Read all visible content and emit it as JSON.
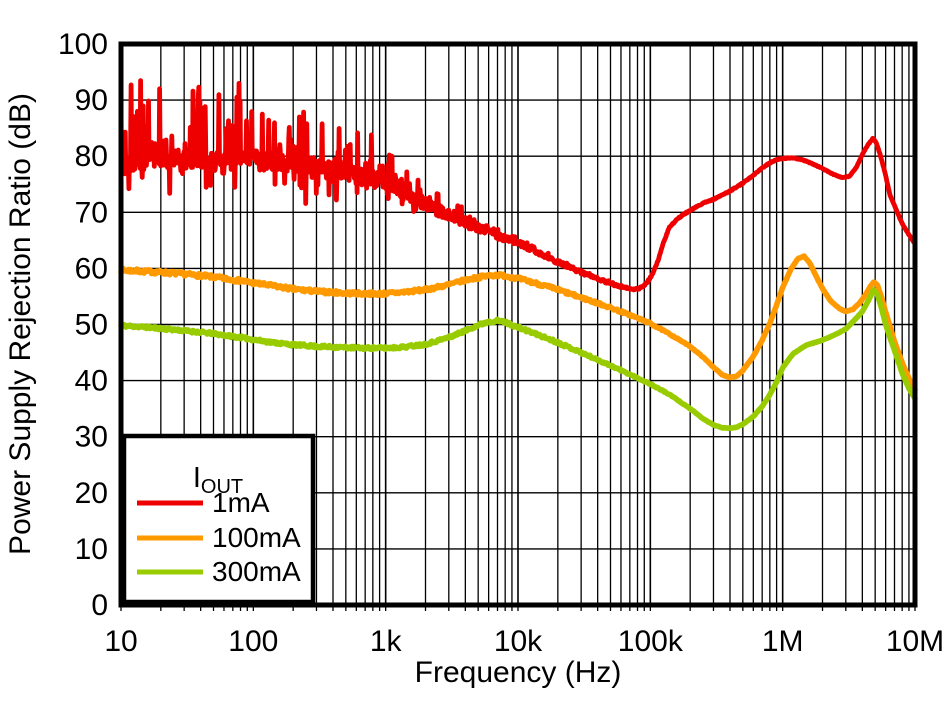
{
  "page": {
    "background": "#ffffff",
    "grid_color": "#000000",
    "axis_color": "#000000"
  },
  "chart_data": {
    "type": "line",
    "title": "",
    "xlabel": "Frequency (Hz)",
    "ylabel": "Power Supply Rejection Ratio (dB)",
    "x_scale": "log",
    "xlim": [
      10,
      10000000
    ],
    "ylim": [
      0,
      100
    ],
    "x_ticks": [
      {
        "v": 10,
        "label": "10"
      },
      {
        "v": 100,
        "label": "100"
      },
      {
        "v": 1000,
        "label": "1k"
      },
      {
        "v": 10000,
        "label": "10k"
      },
      {
        "v": 100000,
        "label": "100k"
      },
      {
        "v": 1000000,
        "label": "1M"
      },
      {
        "v": 10000000,
        "label": "10M"
      }
    ],
    "y_ticks": [
      {
        "v": 0,
        "label": "0"
      },
      {
        "v": 10,
        "label": "10"
      },
      {
        "v": 20,
        "label": "20"
      },
      {
        "v": 30,
        "label": "30"
      },
      {
        "v": 40,
        "label": "40"
      },
      {
        "v": 50,
        "label": "50"
      },
      {
        "v": 60,
        "label": "60"
      },
      {
        "v": 70,
        "label": "70"
      },
      {
        "v": 80,
        "label": "80"
      },
      {
        "v": 90,
        "label": "90"
      },
      {
        "v": 100,
        "label": "100"
      }
    ],
    "grid": {
      "x_minor_log": true,
      "y_step": 10
    },
    "legend": {
      "title_main": "I",
      "title_sub": "OUT",
      "position": "bottom-left"
    },
    "series": [
      {
        "name": "1mA",
        "color": "#ee0000",
        "width": 4.8,
        "samples_per_decade": 250,
        "points": [
          [
            10,
            78.5
          ],
          [
            14,
            79.3
          ],
          [
            20,
            79.5
          ],
          [
            30,
            79.4
          ],
          [
            45,
            79.2
          ],
          [
            60,
            79.0
          ],
          [
            80,
            79.3
          ],
          [
            100,
            79.8
          ],
          [
            140,
            79.2
          ],
          [
            200,
            78.6
          ],
          [
            300,
            78.0
          ],
          [
            400,
            77.5
          ],
          [
            500,
            77.1
          ],
          [
            700,
            76.2
          ],
          [
            1000,
            75.4
          ],
          [
            1400,
            73.8
          ],
          [
            2000,
            71.3
          ],
          [
            3000,
            69.5
          ],
          [
            4000,
            68.2
          ],
          [
            5000,
            67.3
          ],
          [
            7000,
            65.8
          ],
          [
            10000,
            64.6
          ],
          [
            14000,
            62.9
          ],
          [
            20000,
            61.1
          ],
          [
            30000,
            59.3
          ],
          [
            40000,
            58.2
          ],
          [
            50000,
            57.3
          ],
          [
            60000,
            56.7
          ],
          [
            75000,
            56.2
          ],
          [
            85000,
            56.5
          ],
          [
            95000,
            57.5
          ],
          [
            105000,
            59.2
          ],
          [
            115000,
            61.5
          ],
          [
            125000,
            64.5
          ],
          [
            140000,
            67.4
          ],
          [
            160000,
            68.8
          ],
          [
            180000,
            69.7
          ],
          [
            200000,
            70.3
          ],
          [
            230000,
            71.2
          ],
          [
            260000,
            71.8
          ],
          [
            300000,
            72.3
          ],
          [
            400000,
            73.8
          ],
          [
            500000,
            75.2
          ],
          [
            600000,
            76.6
          ],
          [
            700000,
            77.9
          ],
          [
            800000,
            78.8
          ],
          [
            900000,
            79.4
          ],
          [
            1000000,
            79.6
          ],
          [
            1200000,
            79.7
          ],
          [
            1400000,
            79.4
          ],
          [
            1700000,
            78.6
          ],
          [
            2000000,
            77.8
          ],
          [
            2400000,
            76.8
          ],
          [
            2800000,
            76.2
          ],
          [
            3200000,
            76.4
          ],
          [
            3600000,
            78.0
          ],
          [
            4000000,
            80.3
          ],
          [
            4400000,
            82.0
          ],
          [
            4800000,
            83.2
          ],
          [
            5100000,
            82.4
          ],
          [
            5500000,
            80.0
          ],
          [
            6000000,
            76.6
          ],
          [
            6500000,
            72.9
          ],
          [
            7000000,
            71.2
          ],
          [
            7500000,
            69.5
          ],
          [
            8000000,
            68.0
          ],
          [
            9000000,
            66.0
          ],
          [
            10000000,
            64.4
          ]
        ],
        "noise": {
          "seed": 42,
          "jitter": [
            [
              10,
              1.8
            ],
            [
              1000,
              1.5
            ],
            [
              2000,
              1.2
            ],
            [
              5000,
              0.7
            ],
            [
              10000,
              0.5
            ],
            [
              30000,
              0.3
            ],
            [
              100000,
              0.12
            ],
            [
              10000000,
              0.05
            ]
          ],
          "spike": {
            "prob": 0.45,
            "shape": 2.2,
            "up_frac": 0.72,
            "down_scale": 0.5,
            "max": [
              [
                10,
                14
              ],
              [
                100,
                13
              ],
              [
                300,
                11
              ],
              [
                700,
                8
              ],
              [
                1500,
                4.5
              ],
              [
                3000,
                2.2
              ],
              [
                6000,
                1.1
              ],
              [
                20000,
                0.5
              ],
              [
                60000,
                0.2
              ],
              [
                150000,
                0
              ],
              [
                10000000,
                0
              ]
            ]
          }
        }
      },
      {
        "name": "100mA",
        "color": "#ff9900",
        "width": 5.6,
        "samples_per_decade": 160,
        "points": [
          [
            10,
            59.7
          ],
          [
            14,
            59.5
          ],
          [
            20,
            59.3
          ],
          [
            30,
            59.0
          ],
          [
            45,
            58.6
          ],
          [
            60,
            58.2
          ],
          [
            80,
            57.8
          ],
          [
            100,
            57.4
          ],
          [
            140,
            56.9
          ],
          [
            200,
            56.3
          ],
          [
            300,
            55.9
          ],
          [
            500,
            55.6
          ],
          [
            700,
            55.5
          ],
          [
            1000,
            55.5
          ],
          [
            1400,
            55.8
          ],
          [
            2000,
            56.2
          ],
          [
            3000,
            57.1
          ],
          [
            4000,
            57.9
          ],
          [
            5000,
            58.4
          ],
          [
            6000,
            58.7
          ],
          [
            7000,
            58.8
          ],
          [
            8000,
            58.7
          ],
          [
            10000,
            58.2
          ],
          [
            14000,
            57.3
          ],
          [
            20000,
            56.2
          ],
          [
            30000,
            54.8
          ],
          [
            40000,
            53.8
          ],
          [
            50000,
            53.0
          ],
          [
            70000,
            51.7
          ],
          [
            100000,
            50.2
          ],
          [
            140000,
            48.3
          ],
          [
            200000,
            46.1
          ],
          [
            250000,
            44.2
          ],
          [
            300000,
            42.4
          ],
          [
            350000,
            41.0
          ],
          [
            400000,
            40.6
          ],
          [
            450000,
            40.8
          ],
          [
            500000,
            41.8
          ],
          [
            600000,
            44.3
          ],
          [
            700000,
            47.2
          ],
          [
            800000,
            50.2
          ],
          [
            900000,
            53.5
          ],
          [
            1000000,
            56.6
          ],
          [
            1150000,
            59.8
          ],
          [
            1300000,
            61.7
          ],
          [
            1450000,
            62.2
          ],
          [
            1600000,
            61.0
          ],
          [
            1800000,
            58.5
          ],
          [
            2000000,
            56.4
          ],
          [
            2300000,
            54.2
          ],
          [
            2700000,
            52.8
          ],
          [
            3000000,
            52.3
          ],
          [
            3400000,
            52.7
          ],
          [
            3800000,
            53.8
          ],
          [
            4200000,
            55.2
          ],
          [
            4600000,
            56.8
          ],
          [
            4900000,
            57.6
          ],
          [
            5200000,
            57.0
          ],
          [
            5600000,
            54.8
          ],
          [
            6000000,
            52.2
          ],
          [
            6500000,
            49.5
          ],
          [
            7000000,
            47.0
          ],
          [
            8000000,
            43.2
          ],
          [
            9000000,
            40.4
          ],
          [
            10000000,
            38.3
          ]
        ],
        "noise": {
          "seed": 7,
          "jitter": [
            [
              10,
              0.35
            ],
            [
              20000,
              0.3
            ],
            [
              100000,
              0.15
            ],
            [
              250000,
              0.05
            ],
            [
              10000000,
              0.03
            ]
          ]
        }
      },
      {
        "name": "300mA",
        "color": "#99cc00",
        "width": 5.6,
        "samples_per_decade": 160,
        "points": [
          [
            10,
            49.8
          ],
          [
            14,
            49.6
          ],
          [
            20,
            49.3
          ],
          [
            30,
            48.9
          ],
          [
            45,
            48.5
          ],
          [
            60,
            48.1
          ],
          [
            80,
            47.7
          ],
          [
            100,
            47.3
          ],
          [
            140,
            46.8
          ],
          [
            200,
            46.4
          ],
          [
            300,
            46.1
          ],
          [
            500,
            45.9
          ],
          [
            700,
            45.8
          ],
          [
            1000,
            45.8
          ],
          [
            1400,
            46.0
          ],
          [
            2000,
            46.5
          ],
          [
            3000,
            47.7
          ],
          [
            4000,
            48.9
          ],
          [
            5000,
            49.9
          ],
          [
            6000,
            50.5
          ],
          [
            7000,
            50.7
          ],
          [
            8000,
            50.4
          ],
          [
            10000,
            49.5
          ],
          [
            14000,
            48.2
          ],
          [
            20000,
            46.8
          ],
          [
            30000,
            45.0
          ],
          [
            40000,
            43.7
          ],
          [
            50000,
            42.7
          ],
          [
            70000,
            41.1
          ],
          [
            100000,
            39.4
          ],
          [
            140000,
            37.5
          ],
          [
            200000,
            35.0
          ],
          [
            250000,
            33.2
          ],
          [
            300000,
            32.1
          ],
          [
            350000,
            31.6
          ],
          [
            400000,
            31.5
          ],
          [
            450000,
            31.7
          ],
          [
            500000,
            32.2
          ],
          [
            600000,
            33.6
          ],
          [
            700000,
            35.4
          ],
          [
            800000,
            37.5
          ],
          [
            900000,
            39.8
          ],
          [
            1000000,
            42.3
          ],
          [
            1200000,
            44.8
          ],
          [
            1500000,
            46.3
          ],
          [
            2000000,
            47.2
          ],
          [
            2500000,
            48.2
          ],
          [
            3000000,
            49.2
          ],
          [
            3500000,
            50.8
          ],
          [
            4000000,
            52.3
          ],
          [
            4500000,
            54.5
          ],
          [
            4850000,
            56.2
          ],
          [
            5200000,
            55.3
          ],
          [
            5600000,
            52.8
          ],
          [
            6000000,
            50.0
          ],
          [
            6500000,
            47.5
          ],
          [
            7000000,
            45.4
          ],
          [
            8000000,
            41.3
          ],
          [
            9000000,
            38.6
          ],
          [
            10000000,
            36.8
          ]
        ],
        "noise": {
          "seed": 11,
          "jitter": [
            [
              10,
              0.25
            ],
            [
              20000,
              0.25
            ],
            [
              100000,
              0.12
            ],
            [
              250000,
              0.04
            ],
            [
              10000000,
              0.03
            ]
          ]
        }
      }
    ]
  }
}
